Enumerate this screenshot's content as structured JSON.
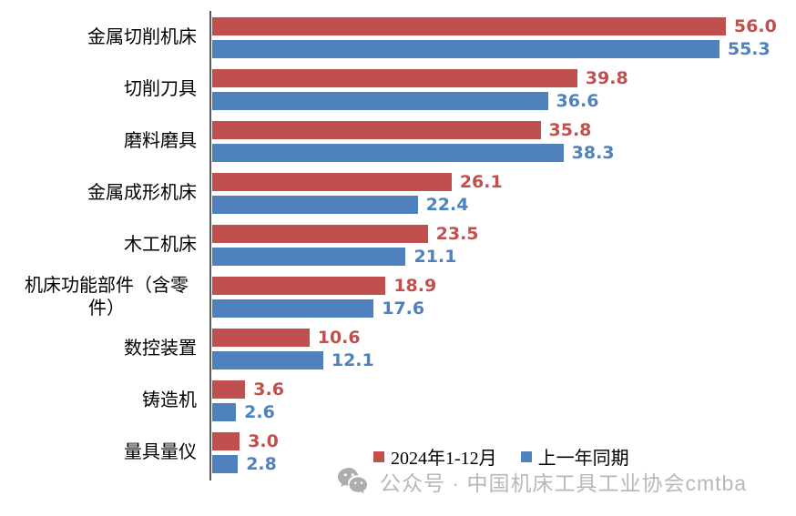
{
  "chart_data": {
    "type": "bar",
    "orientation": "horizontal",
    "title": "",
    "xlabel": "",
    "ylabel": "",
    "xlim": [
      0,
      60
    ],
    "grid": false,
    "legend_position": "bottom",
    "value_labels_shown": true,
    "categories": [
      "金属切削机床",
      "切削刀具",
      "磨料磨具",
      "金属成形机床",
      "木工机床",
      "机床功能部件（含零件）",
      "数控装置",
      "铸造机",
      "量具量仪"
    ],
    "series": [
      {
        "name": "2024年1-12月",
        "color": "#c0504d",
        "values": [
          56.0,
          39.8,
          35.8,
          26.1,
          23.5,
          18.9,
          10.6,
          3.6,
          3.0
        ]
      },
      {
        "name": "上一年同期",
        "color": "#4f81bd",
        "values": [
          55.3,
          36.6,
          38.3,
          22.4,
          21.1,
          17.6,
          12.1,
          2.6,
          2.8
        ]
      }
    ]
  },
  "legend": {
    "items": [
      {
        "label": "2024年1-12月",
        "color": "#c0504d"
      },
      {
        "label": "上一年同期",
        "color": "#4f81bd"
      }
    ]
  },
  "watermark": {
    "icon": "wechat-icon",
    "text": "公众号 · 中国机床工具工业协会cmtba",
    "color": "#b8b8b8"
  },
  "colors": {
    "series1": "#c0504d",
    "series2": "#4f81bd",
    "axis": "#595959",
    "background": "#ffffff"
  }
}
